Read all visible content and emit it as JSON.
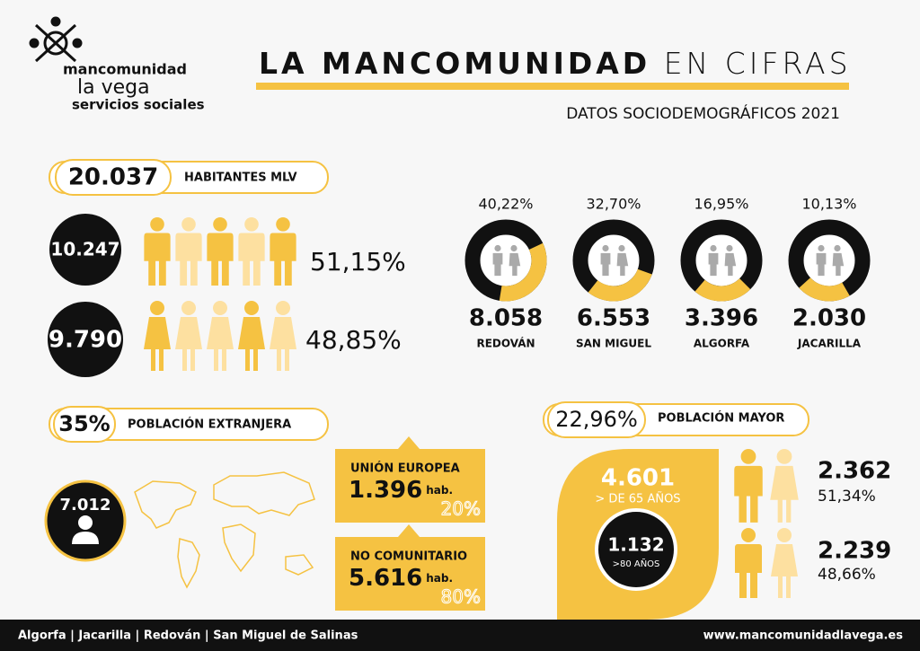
{
  "header": {
    "logo": [
      "mancomunidad",
      "la vega",
      "servicios sociales"
    ],
    "title_bold": "LA MANCOMUNIDAD",
    "title_light": "EN CIFRAS",
    "subtitle": "DATOS SOCIODEMOGRÁFICOS 2021"
  },
  "habitantes": {
    "total": "20.037",
    "label": "HABITANTES MLV",
    "rows": [
      {
        "count": "10.247",
        "percent": "51,15%"
      },
      {
        "count": "9.790",
        "percent": "48,85%"
      }
    ]
  },
  "municipios": [
    {
      "percent": "40,22%",
      "count": "8.058",
      "name": "REDOVÁN"
    },
    {
      "percent": "32,70%",
      "count": "6.553",
      "name": "SAN MIGUEL"
    },
    {
      "percent": "16,95%",
      "count": "3.396",
      "name": "ALGORFA"
    },
    {
      "percent": "10,13%",
      "count": "2.030",
      "name": "JACARILLA"
    }
  ],
  "extranjera": {
    "percent": "35%",
    "label": "POBLACIÓN EXTRANJERA",
    "total": "7.012",
    "groups": [
      {
        "name": "UNIÓN EUROPEA",
        "count": "1.396",
        "unit": "hab.",
        "percent": "20%"
      },
      {
        "name": "NO COMUNITARIO",
        "count": "5.616",
        "unit": "hab.",
        "percent": "80%"
      }
    ]
  },
  "mayor": {
    "percent": "22,96%",
    "label": "POBLACIÓN MAYOR",
    "over65": "4.601",
    "over65_label": "> DE 65 AÑOS",
    "over80": "1.132",
    "over80_label": ">80 AÑOS",
    "groups": [
      {
        "count": "2.362",
        "percent": "51,34%"
      },
      {
        "count": "2.239",
        "percent": "48,66%"
      }
    ]
  },
  "footer": {
    "towns": "Algorfa | Jacarilla | Redován | San Miguel de Salinas",
    "website": "www.mancomunidadlavega.es"
  }
}
